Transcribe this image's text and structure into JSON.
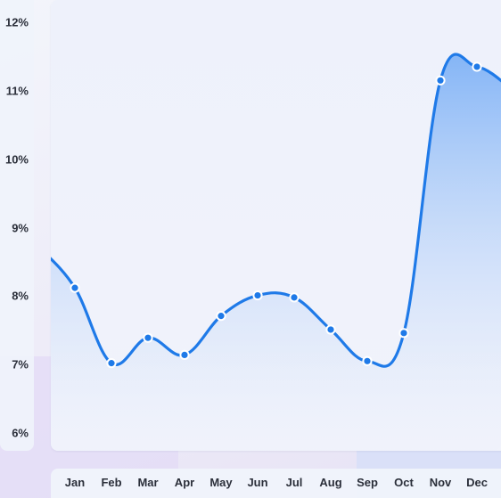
{
  "chart_data": {
    "type": "area",
    "categories": [
      "Jan",
      "Feb",
      "Mar",
      "Apr",
      "May",
      "Jun",
      "Jul",
      "Aug",
      "Sep",
      "Oct",
      "Nov",
      "Dec"
    ],
    "series": [
      {
        "values": [
          8.12,
          7.02,
          7.39,
          7.14,
          7.71,
          8.01,
          7.98,
          7.51,
          7.05,
          7.46,
          11.15,
          11.35
        ]
      }
    ],
    "y_ticks": [
      "6%",
      "7%",
      "8%",
      "9%",
      "10%",
      "11%",
      "12%"
    ],
    "ylim": [
      5.98,
      12.1
    ],
    "title": "",
    "xlabel": "",
    "ylabel": "",
    "grid": false,
    "colors": {
      "line": "#1f7ae8",
      "fill_top": "#7fb2f6",
      "fill_bottom": "#eef1fb",
      "marker": "#1f7ae8"
    }
  }
}
